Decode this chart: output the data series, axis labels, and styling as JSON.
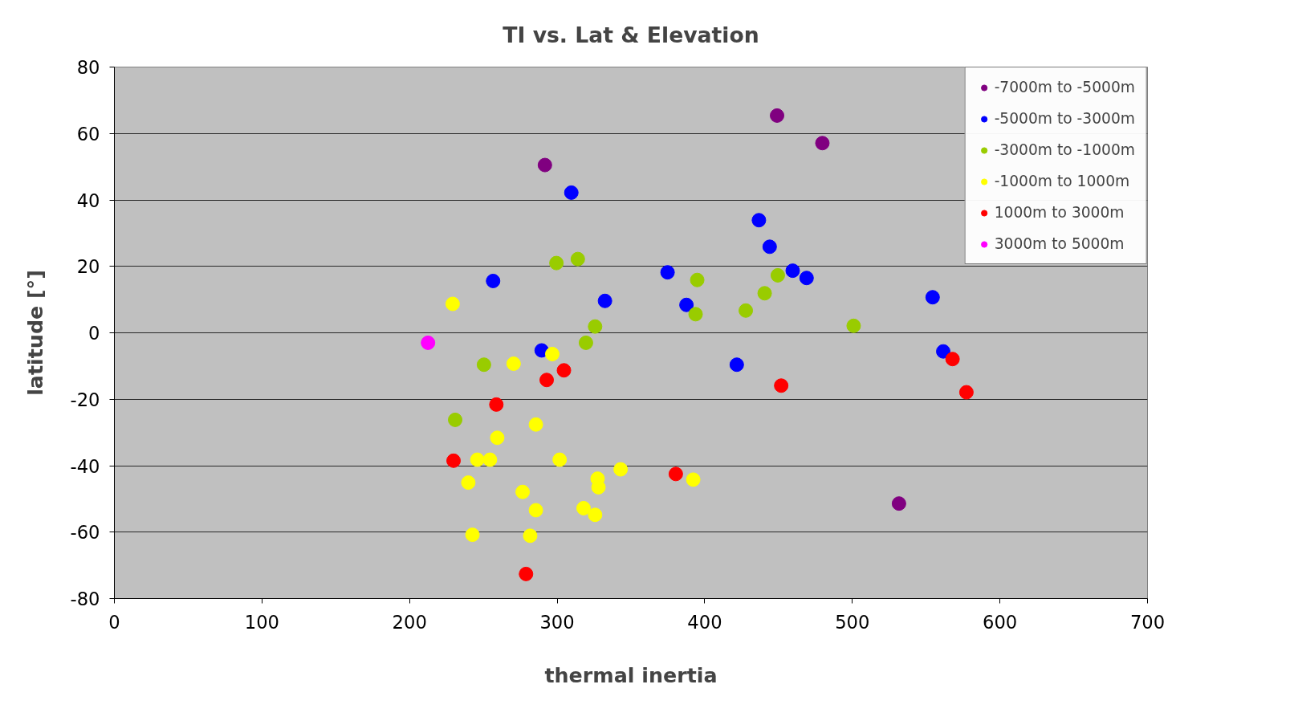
{
  "chart_data": {
    "type": "scatter",
    "title": "TI vs. Lat & Elevation",
    "xlabel": "thermal inertia",
    "ylabel": "latitude [°]",
    "xlim": [
      0,
      700
    ],
    "xticks": [
      0,
      100,
      200,
      300,
      400,
      500,
      600,
      700
    ],
    "ylim": [
      -80,
      80
    ],
    "yticks": [
      -80,
      -60,
      -40,
      -20,
      0,
      20,
      40,
      60,
      80
    ],
    "grid": "y",
    "legend": "top right",
    "marker": "circle",
    "series": [
      {
        "name": "-7000m to -5000m",
        "color": "#800080",
        "x": [
          291.7,
          449,
          479.7,
          531.6
        ],
        "values": [
          50.5,
          65.4,
          57.1,
          -51.4
        ]
      },
      {
        "name": "-5000m to -3000m",
        "color": "#0000ff",
        "x": [
          309.6,
          256.6,
          332.4,
          289.5,
          374.8,
          387.6,
          436.7,
          444,
          459.6,
          469,
          421.7,
          554.4,
          561.6
        ],
        "values": [
          42.2,
          15.6,
          9.6,
          -5.3,
          18.2,
          8.4,
          33.9,
          25.9,
          18.7,
          16.5,
          -9.6,
          10.7,
          -5.6
        ]
      },
      {
        "name": "-3000m to -1000m",
        "color": "#99cc00",
        "x": [
          299.5,
          314,
          325.7,
          319.5,
          250.4,
          230.9,
          394.9,
          393.8,
          427.8,
          440.6,
          449.5,
          500.9
        ],
        "values": [
          21,
          22.2,
          1.9,
          -3,
          -9.6,
          -26.2,
          15.9,
          5.6,
          6.7,
          11.9,
          17.3,
          2.1
        ]
      },
      {
        "name": "-1000m to 1000m",
        "color": "#ffff00",
        "x": [
          229.2,
          296.7,
          270.5,
          259.4,
          285.6,
          245.9,
          254.5,
          301.7,
          239.8,
          276.6,
          327.4,
          328,
          343,
          285.6,
          317.9,
          325.7,
          242.6,
          281.7,
          392.2
        ],
        "values": [
          8.7,
          -6.4,
          -9.3,
          -31.6,
          -27.6,
          -38.2,
          -38.2,
          -38.2,
          -45.1,
          -47.9,
          -43.9,
          -46.5,
          -41.1,
          -53.4,
          -52.8,
          -54.8,
          -60.8,
          -61.1,
          -44.2
        ]
      },
      {
        "name": "1000m to 3000m",
        "color": "#ff0000",
        "x": [
          292.9,
          304.6,
          258.8,
          229.8,
          278.9,
          380.4,
          451.8,
          567.9,
          577.3
        ],
        "values": [
          -14.2,
          -11.3,
          -21.6,
          -38.5,
          -72.6,
          -42.5,
          -15.9,
          -7.9,
          -17.9
        ]
      },
      {
        "name": "3000m to 5000m",
        "color": "#ff00ff",
        "x": [
          212.5
        ],
        "values": [
          -3
        ]
      }
    ]
  }
}
